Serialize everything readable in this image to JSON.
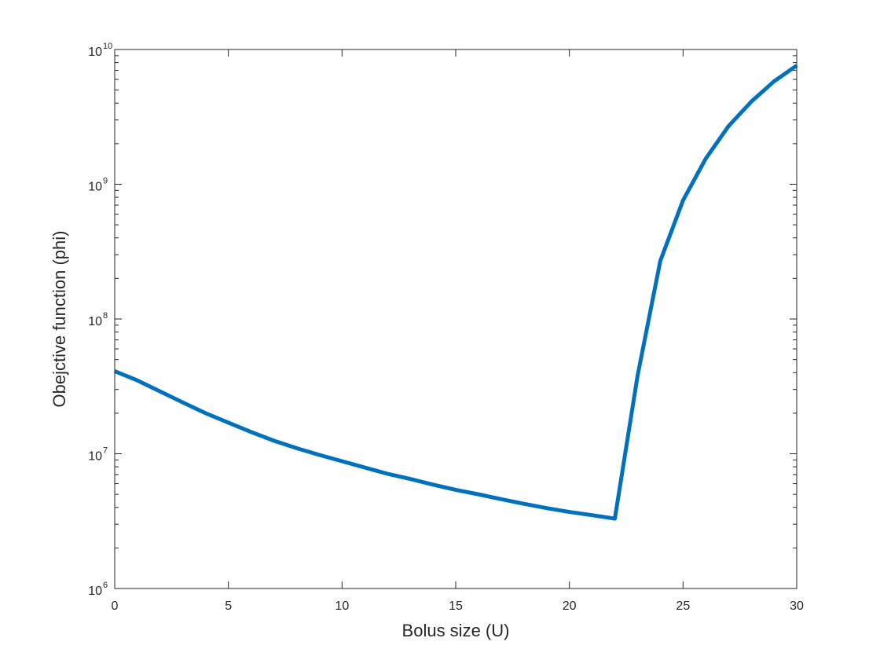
{
  "chart_data": {
    "type": "line",
    "title": "",
    "xlabel": "Bolus size (U)",
    "ylabel": "Obejctive function (phi)",
    "xlim": [
      0,
      30
    ],
    "ylim": [
      1000000,
      10000000000
    ],
    "yscale": "log",
    "grid": false,
    "x_ticks": [
      0,
      5,
      10,
      15,
      20,
      25,
      30
    ],
    "y_ticks": [
      {
        "value": 1000000,
        "base": "10",
        "exp": "6"
      },
      {
        "value": 10000000,
        "base": "10",
        "exp": "7"
      },
      {
        "value": 100000000,
        "base": "10",
        "exp": "8"
      },
      {
        "value": 1000000000,
        "base": "10",
        "exp": "9"
      },
      {
        "value": 10000000000,
        "base": "10",
        "exp": "10"
      }
    ],
    "line_color": "#0072BD",
    "series": [
      {
        "x": [
          0,
          1,
          2,
          3,
          4,
          5,
          6,
          7,
          8,
          9,
          10,
          11,
          12,
          13,
          14,
          15,
          16,
          17,
          18,
          19,
          20,
          21,
          22,
          23,
          24,
          25,
          26,
          27,
          28,
          29,
          30
        ],
        "values": [
          41000000,
          35000000,
          29000000,
          24000000,
          20000000,
          17000000,
          14500000,
          12500000,
          11000000,
          9800000,
          8800000,
          7900000,
          7100000,
          6500000,
          5900000,
          5400000,
          5000000,
          4600000,
          4250000,
          3950000,
          3700000,
          3500000,
          3300000,
          38000000,
          270000000,
          760000000,
          1550000000,
          2700000000,
          4100000000,
          5800000000,
          7600000000
        ]
      }
    ]
  }
}
